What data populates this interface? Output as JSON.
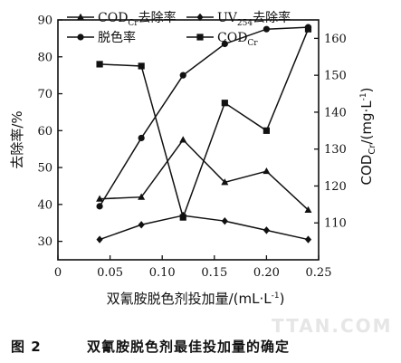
{
  "chart_data": {
    "type": "line",
    "xlabel": "双氰胺脱色剂投加量/(mL·L",
    "xlabel_sup": "-1",
    "xlabel_close": ")",
    "ylabel_left": "去除率/%",
    "ylabel_right": "COD",
    "ylabel_right_sub": "Cr",
    "ylabel_right_unit": "/(mg·L",
    "ylabel_right_sup": "-1",
    "ylabel_right_close": ")",
    "xlim": [
      0,
      0.25
    ],
    "ylim_left": [
      25,
      90
    ],
    "ylim_right": [
      100,
      165
    ],
    "x_ticks": [
      "0",
      "0.05",
      "0.10",
      "0.15",
      "0.20",
      "0.25"
    ],
    "y_left_ticks": [
      "30",
      "40",
      "50",
      "60",
      "70",
      "80",
      "90"
    ],
    "y_right_ticks": [
      "110",
      "120",
      "130",
      "140",
      "150",
      "160"
    ],
    "series": [
      {
        "name": "COD",
        "name_sub": "Cr",
        "name_suffix": "去除率",
        "axis": "left",
        "marker": "triangle",
        "x": [
          0.04,
          0.08,
          0.12,
          0.16,
          0.2,
          0.24
        ],
        "y": [
          41.5,
          42,
          57.5,
          46,
          49,
          38.5
        ]
      },
      {
        "name": "UV",
        "name_sub": "254",
        "name_suffix": "去除率",
        "axis": "left",
        "marker": "diamond",
        "x": [
          0.04,
          0.08,
          0.12,
          0.16,
          0.2,
          0.24
        ],
        "y": [
          30.5,
          34.5,
          37,
          35.5,
          33,
          30.5
        ]
      },
      {
        "name": "脱色率",
        "name_sub": "",
        "name_suffix": "",
        "axis": "left",
        "marker": "circle",
        "x": [
          0.04,
          0.08,
          0.12,
          0.16,
          0.2,
          0.24
        ],
        "y": [
          39.5,
          58,
          75,
          83.5,
          87.5,
          88
        ]
      },
      {
        "name": "COD",
        "name_sub": "Cr",
        "name_suffix": "",
        "axis": "right",
        "marker": "square",
        "x": [
          0.04,
          0.08,
          0.12,
          0.16,
          0.2,
          0.24
        ],
        "y": [
          153,
          152.5,
          111.5,
          142.5,
          135,
          162.5
        ]
      }
    ]
  },
  "caption": {
    "number": "图 2",
    "text": "双氰胺脱色剂最佳投加量的确定"
  },
  "watermark": "TTAN.COM"
}
